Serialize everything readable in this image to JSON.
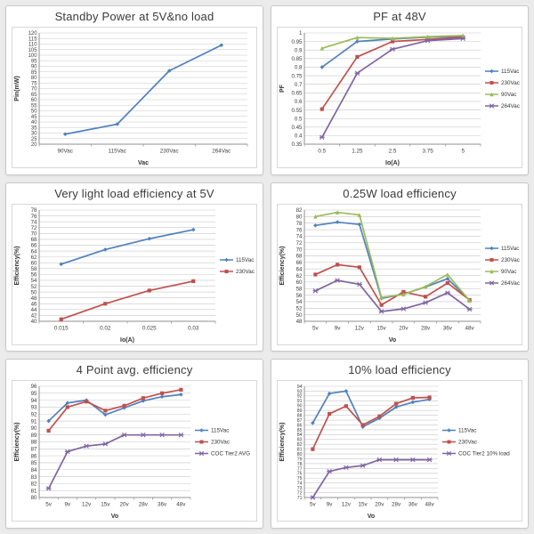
{
  "page": {
    "background_color": "#ebebeb",
    "card_border_color": "#c9c9c9",
    "grid_color": "#c8c8c8",
    "axis_color": "#8f8f8f",
    "text_color": "#3d3d3d"
  },
  "chart_data": [
    {
      "id": "standby-power",
      "type": "line",
      "title": "Standby Power at 5V&no load",
      "xlabel": "Vac",
      "ylabel": "Pin(mW)",
      "categories": [
        "90Vac",
        "115Vac",
        "230Vac",
        "264Vac"
      ],
      "ylim": [
        20,
        120
      ],
      "ystep": 5,
      "grid": true,
      "legend_position": "none",
      "series": [
        {
          "name": "Pin",
          "color": "#4F81BD",
          "marker": "diamond",
          "values": [
            29,
            38,
            86,
            109
          ]
        }
      ]
    },
    {
      "id": "pf-48v",
      "type": "line",
      "title": "PF at 48V",
      "xlabel": "Io(A)",
      "ylabel": "PF",
      "categories": [
        "0.5",
        "1.25",
        "2.5",
        "3.75",
        "5"
      ],
      "ylim": [
        0.35,
        1
      ],
      "ystep": 0.05,
      "grid": true,
      "legend_position": "right",
      "series": [
        {
          "name": "115Vac",
          "color": "#4F81BD",
          "marker": "diamond",
          "values": [
            0.8,
            0.95,
            0.965,
            0.975,
            0.98
          ]
        },
        {
          "name": "230Vac",
          "color": "#C0504D",
          "marker": "square",
          "values": [
            0.555,
            0.86,
            0.95,
            0.962,
            0.975
          ]
        },
        {
          "name": "90Vac",
          "color": "#9BBB59",
          "marker": "triangle",
          "values": [
            0.91,
            0.973,
            0.968,
            0.978,
            0.985
          ]
        },
        {
          "name": "264Vac",
          "color": "#8064A2",
          "marker": "x",
          "values": [
            0.39,
            0.765,
            0.905,
            0.955,
            0.967
          ]
        }
      ]
    },
    {
      "id": "very-light-load-efficiency-5v",
      "type": "line",
      "title": "Very light load efficiency at 5V",
      "xlabel": "Io(A)",
      "ylabel": "Efficiency(%)",
      "categories": [
        "0.015",
        "0.02",
        "0.025",
        "0.03"
      ],
      "ylim": [
        40,
        78
      ],
      "ystep": 2,
      "grid": true,
      "legend_position": "right",
      "series": [
        {
          "name": "115Vac",
          "color": "#4F81BD",
          "marker": "diamond",
          "values": [
            59.5,
            64.5,
            68.2,
            71.3
          ]
        },
        {
          "name": "230Vac",
          "color": "#C0504D",
          "marker": "square",
          "values": [
            40.7,
            46,
            50.5,
            53.7
          ]
        }
      ]
    },
    {
      "id": "quarter-watt-load-efficiency",
      "type": "line",
      "title": "0.25W load efficiency",
      "xlabel": "Vo",
      "ylabel": "Efficiency(%)",
      "categories": [
        "5v",
        "9v",
        "12v",
        "15v",
        "20v",
        "28v",
        "36v",
        "48v"
      ],
      "ylim": [
        48,
        82
      ],
      "ystep": 2,
      "grid": true,
      "legend_position": "right",
      "series": [
        {
          "name": "115Vac",
          "color": "#4F81BD",
          "marker": "diamond",
          "values": [
            77.3,
            78.3,
            77.6,
            55,
            56.3,
            58.5,
            61,
            54.5
          ]
        },
        {
          "name": "230Vac",
          "color": "#C0504D",
          "marker": "square",
          "values": [
            62.3,
            65.3,
            64.5,
            53,
            57,
            55.5,
            59.7,
            54.5
          ]
        },
        {
          "name": "90Vac",
          "color": "#9BBB59",
          "marker": "triangle",
          "values": [
            80,
            81.3,
            80.5,
            55.3,
            56.2,
            58.6,
            62.3,
            54.3
          ]
        },
        {
          "name": "264Vac",
          "color": "#8064A2",
          "marker": "x",
          "values": [
            57.3,
            60.5,
            59.3,
            51,
            51.8,
            53.7,
            56.7,
            51.7
          ]
        }
      ]
    },
    {
      "id": "four-point-avg-efficiency",
      "type": "line",
      "title": "4 Point avg. efficiency",
      "xlabel": "Vo",
      "ylabel": "Efficiency(%)",
      "categories": [
        "5v",
        "9v",
        "12v",
        "15v",
        "20v",
        "28v",
        "36v",
        "48v"
      ],
      "ylim": [
        80,
        96
      ],
      "ystep": 1,
      "grid": true,
      "legend_position": "right",
      "series": [
        {
          "name": "115Vac",
          "color": "#4F81BD",
          "marker": "diamond",
          "values": [
            91,
            93.6,
            94,
            91.9,
            92.9,
            93.9,
            94.5,
            94.8
          ]
        },
        {
          "name": "230Vac",
          "color": "#C0504D",
          "marker": "square",
          "values": [
            89.6,
            93,
            93.8,
            92.5,
            93.2,
            94.3,
            95,
            95.5
          ]
        },
        {
          "name": "COC Tier2 AVG",
          "color": "#8064A2",
          "marker": "x",
          "values": [
            81.3,
            86.6,
            87.4,
            87.7,
            89,
            89,
            89,
            89
          ]
        }
      ]
    },
    {
      "id": "ten-percent-load-efficiency",
      "type": "line",
      "title": "10% load efficiency",
      "xlabel": "Vo",
      "ylabel": "Efficiency(%)",
      "categories": [
        "5v",
        "9v",
        "12v",
        "15v",
        "20v",
        "28v",
        "36v",
        "48v"
      ],
      "ylim": [
        71,
        94
      ],
      "ystep": 1,
      "grid": true,
      "legend_position": "right",
      "series": [
        {
          "name": "115Vac",
          "color": "#4F81BD",
          "marker": "diamond",
          "values": [
            86.4,
            92.5,
            93,
            85.6,
            87.4,
            89.7,
            90.7,
            91.3
          ]
        },
        {
          "name": "230Vac",
          "color": "#C0504D",
          "marker": "square",
          "values": [
            81,
            88.3,
            89.9,
            86,
            87.8,
            90.4,
            91.6,
            91.7
          ]
        },
        {
          "name": "COC Tier2 10% load",
          "color": "#8064A2",
          "marker": "x",
          "values": [
            71,
            76.4,
            77.2,
            77.6,
            78.8,
            78.8,
            78.8,
            78.8
          ]
        }
      ]
    }
  ]
}
